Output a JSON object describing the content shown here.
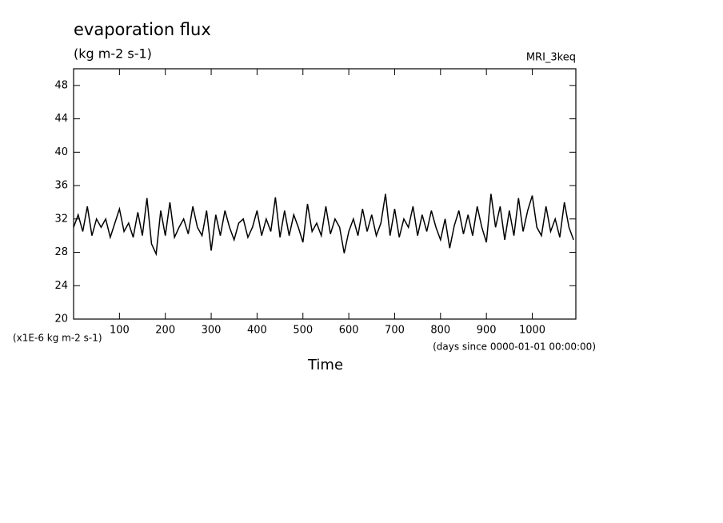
{
  "chart_data": {
    "type": "line",
    "title": "evaporation flux",
    "subtitle": "(kg m-2 s-1)",
    "source": "MRI_3keq",
    "y_scale_label": "(x1E-6 kg m-2 s-1)",
    "x_units": "(days since 0000-01-01 00:00:00)",
    "x_label": "Time",
    "xlim": [
      0,
      1095
    ],
    "ylim": [
      20,
      50
    ],
    "xticks": [
      100,
      200,
      300,
      400,
      500,
      600,
      700,
      800,
      900,
      1000
    ],
    "yticks": [
      20,
      24,
      28,
      32,
      36,
      40,
      44,
      48
    ],
    "x": [
      0,
      10,
      20,
      30,
      40,
      50,
      60,
      70,
      80,
      90,
      100,
      110,
      120,
      130,
      140,
      150,
      160,
      170,
      180,
      190,
      200,
      210,
      220,
      230,
      240,
      250,
      260,
      270,
      280,
      290,
      300,
      310,
      320,
      330,
      340,
      350,
      360,
      370,
      380,
      390,
      400,
      410,
      420,
      430,
      440,
      450,
      460,
      470,
      480,
      490,
      500,
      510,
      520,
      530,
      540,
      550,
      560,
      570,
      580,
      590,
      600,
      610,
      620,
      630,
      640,
      650,
      660,
      670,
      680,
      690,
      700,
      710,
      720,
      730,
      740,
      750,
      760,
      770,
      780,
      790,
      800,
      810,
      820,
      830,
      840,
      850,
      860,
      870,
      880,
      890,
      900,
      910,
      920,
      930,
      940,
      950,
      960,
      970,
      980,
      990,
      1000,
      1010,
      1020,
      1030,
      1040,
      1050,
      1060,
      1070,
      1080,
      1090
    ],
    "series": [
      {
        "color": "#000000",
        "values": [
          31,
          32.5,
          30.5,
          33.5,
          30,
          32,
          31,
          32,
          29.8,
          31.5,
          33.2,
          30.5,
          31.5,
          29.8,
          32.8,
          30,
          34.5,
          29,
          27.8,
          33,
          30,
          34,
          29.8,
          31,
          32,
          30.2,
          33.5,
          31,
          30,
          33,
          28.2,
          32.5,
          30,
          33,
          31,
          29.5,
          31.5,
          32,
          29.8,
          31,
          33,
          30,
          32,
          30.5,
          34.6,
          29.8,
          33,
          30,
          32.5,
          31,
          29.2,
          33.8,
          30.5,
          31.5,
          30,
          33.5,
          30.2,
          32,
          31,
          27.9,
          30.5,
          32,
          30,
          33.2,
          30.5,
          32.5,
          30,
          31.5,
          35,
          30,
          33.2,
          29.8,
          32,
          31,
          33.5,
          30,
          32.5,
          30.5,
          33,
          31,
          29.5,
          32,
          28.5,
          31.2,
          33,
          30.2,
          32.5,
          30,
          33.5,
          31,
          29.2,
          35,
          31,
          33.5,
          29.5,
          33,
          30,
          34.5,
          30.5,
          33,
          34.8,
          31,
          30,
          33.5,
          30.5,
          32,
          29.8,
          34,
          31,
          29.5
        ]
      }
    ]
  }
}
